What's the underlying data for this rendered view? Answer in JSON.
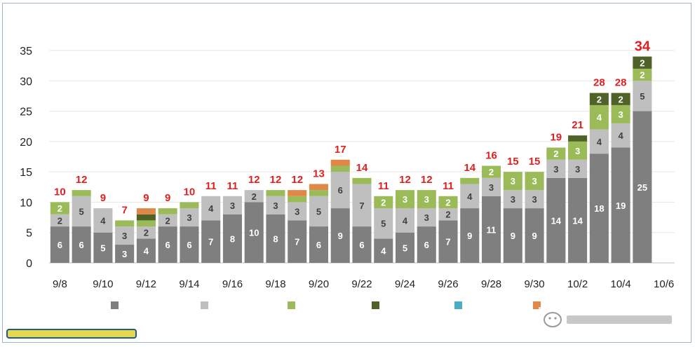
{
  "colors": {
    "series": [
      "#7f7f7f",
      "#bfbfbf",
      "#9bbb59",
      "#4f6228",
      "#4bacc6",
      "#e0884a"
    ],
    "total_label": "#e02020",
    "segment_label_dark": "#ffffff",
    "segment_label_light": "#404040",
    "axis_text": "#222222",
    "grid": "#e6e6e6",
    "frame": "#9fb4c4"
  },
  "chart_data": {
    "type": "bar",
    "stacked": true,
    "title": "",
    "xlabel": "",
    "ylabel": "",
    "ylim": [
      0,
      35
    ],
    "yticks": [
      0,
      5,
      10,
      15,
      20,
      25,
      30,
      35
    ],
    "grid": true,
    "legend_position": "bottom",
    "categories": [
      "9/8",
      "9/9",
      "9/10",
      "9/11",
      "9/12",
      "9/13",
      "9/14",
      "9/15",
      "9/16",
      "9/17",
      "9/18",
      "9/19",
      "9/20",
      "9/21",
      "9/22",
      "9/23",
      "9/24",
      "9/25",
      "9/26",
      "9/27",
      "9/28",
      "9/29",
      "9/30",
      "10/1",
      "10/2",
      "10/3",
      "10/4",
      "10/5",
      "10/6"
    ],
    "tick_labels": [
      "9/8",
      "9/10",
      "9/12",
      "9/14",
      "9/16",
      "9/18",
      "9/20",
      "9/22",
      "9/24",
      "9/26",
      "9/28",
      "9/30",
      "10/2",
      "10/4",
      "10/6"
    ],
    "series": [
      {
        "values": [
          6,
          6,
          5,
          3,
          4,
          6,
          6,
          7,
          8,
          10,
          8,
          7,
          6,
          9,
          6,
          4,
          5,
          6,
          7,
          9,
          11,
          9,
          9,
          14,
          14,
          18,
          19,
          25,
          0
        ]
      },
      {
        "values": [
          2,
          5,
          4,
          3,
          2,
          2,
          3,
          4,
          3,
          2,
          3,
          3,
          5,
          6,
          7,
          5,
          4,
          3,
          2,
          4,
          3,
          3,
          3,
          3,
          3,
          4,
          4,
          5,
          0
        ]
      },
      {
        "values": [
          2,
          1,
          0,
          1,
          1,
          1,
          1,
          0,
          0,
          0,
          1,
          1,
          1,
          1,
          1,
          2,
          3,
          3,
          2,
          1,
          2,
          3,
          3,
          2,
          3,
          4,
          3,
          2,
          0
        ]
      },
      {
        "values": [
          0,
          0,
          0,
          0,
          1,
          0,
          0,
          0,
          0,
          0,
          0,
          0,
          0,
          0,
          0,
          0,
          0,
          0,
          0,
          0,
          0,
          0,
          0,
          0,
          1,
          2,
          2,
          2,
          0
        ]
      },
      {
        "values": [
          0,
          0,
          0,
          0,
          0,
          0,
          0,
          0,
          0,
          0,
          0,
          0,
          0,
          0,
          0,
          0,
          0,
          0,
          0,
          0,
          0,
          0,
          0,
          0,
          0,
          0,
          0,
          0,
          0
        ]
      },
      {
        "values": [
          0,
          0,
          0,
          0,
          1,
          0,
          0,
          0,
          0,
          0,
          0,
          1,
          1,
          1,
          0,
          0,
          0,
          0,
          0,
          0,
          0,
          0,
          0,
          0,
          0,
          0,
          0,
          0,
          0
        ]
      }
    ],
    "segment_labels": [
      [
        6,
        6,
        5,
        3,
        4,
        6,
        6,
        7,
        8,
        10,
        8,
        7,
        6,
        9,
        6,
        4,
        5,
        6,
        7,
        9,
        11,
        9,
        9,
        14,
        14,
        18,
        19,
        25,
        null
      ],
      [
        2,
        5,
        4,
        3,
        2,
        2,
        3,
        4,
        3,
        2,
        3,
        3,
        5,
        6,
        7,
        5,
        4,
        3,
        2,
        4,
        3,
        3,
        3,
        3,
        3,
        4,
        4,
        5,
        null
      ],
      [
        2,
        null,
        null,
        null,
        null,
        null,
        null,
        null,
        null,
        null,
        null,
        null,
        null,
        null,
        null,
        2,
        3,
        3,
        2,
        null,
        2,
        3,
        3,
        2,
        3,
        4,
        3,
        2,
        null
      ],
      [
        null,
        null,
        null,
        null,
        null,
        null,
        null,
        null,
        null,
        null,
        null,
        null,
        null,
        null,
        null,
        null,
        null,
        null,
        null,
        null,
        null,
        null,
        null,
        null,
        null,
        2,
        2,
        2,
        null
      ],
      [
        null,
        null,
        null,
        null,
        null,
        null,
        null,
        null,
        null,
        null,
        null,
        null,
        null,
        null,
        null,
        null,
        null,
        null,
        null,
        null,
        null,
        null,
        null,
        null,
        null,
        null,
        null,
        null,
        null
      ],
      [
        null,
        null,
        null,
        null,
        null,
        null,
        null,
        null,
        null,
        null,
        null,
        null,
        null,
        null,
        null,
        null,
        null,
        null,
        null,
        null,
        null,
        null,
        null,
        null,
        null,
        null,
        null,
        null,
        null
      ]
    ],
    "totals": [
      10,
      12,
      9,
      7,
      9,
      9,
      10,
      11,
      11,
      12,
      12,
      12,
      13,
      17,
      14,
      11,
      12,
      12,
      11,
      14,
      16,
      15,
      15,
      19,
      21,
      28,
      28,
      34,
      null
    ]
  }
}
